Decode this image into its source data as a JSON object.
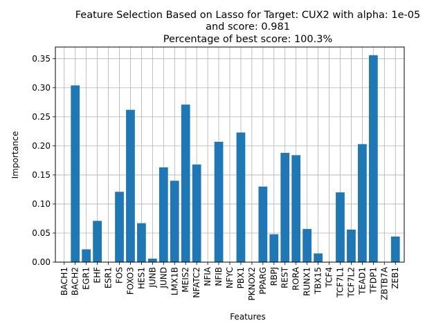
{
  "chart_data": {
    "type": "bar",
    "title_lines": [
      "Feature Selection Based on Lasso for Target: CUX2 with alpha: 1e-05",
      "and score: 0.981",
      "Percentage of best score: 100.3%"
    ],
    "xlabel": "Features",
    "ylabel": "Importance",
    "ylim": [
      0,
      0.37
    ],
    "yticks": [
      "0.00",
      "0.05",
      "0.10",
      "0.15",
      "0.20",
      "0.25",
      "0.30",
      "0.35"
    ],
    "grid": true,
    "bar_color": "#1f77b4",
    "categories": [
      "BACH1",
      "BACH2",
      "EGR1",
      "EHF",
      "ESR1",
      "FOS",
      "FOXO3",
      "HES1",
      "JUNB",
      "JUND",
      "LMX1B",
      "MEIS2",
      "NFATC2",
      "NFIA",
      "NFIB",
      "NFYC",
      "PBX1",
      "PKNOX2",
      "PPARG",
      "RBPJ",
      "REST",
      "RORA",
      "RUNX1",
      "TBX15",
      "TCF4",
      "TCF7L1",
      "TCF7L2",
      "TEAD1",
      "TFDP1",
      "ZBTB7A",
      "ZEB1"
    ],
    "values": [
      0.0,
      0.304,
      0.022,
      0.071,
      0.0,
      0.121,
      0.262,
      0.067,
      0.006,
      0.163,
      0.14,
      0.271,
      0.168,
      0.0,
      0.207,
      0.0,
      0.223,
      0.0,
      0.13,
      0.048,
      0.188,
      0.184,
      0.057,
      0.015,
      0.0,
      0.12,
      0.056,
      0.203,
      0.356,
      0.0,
      0.044
    ]
  }
}
